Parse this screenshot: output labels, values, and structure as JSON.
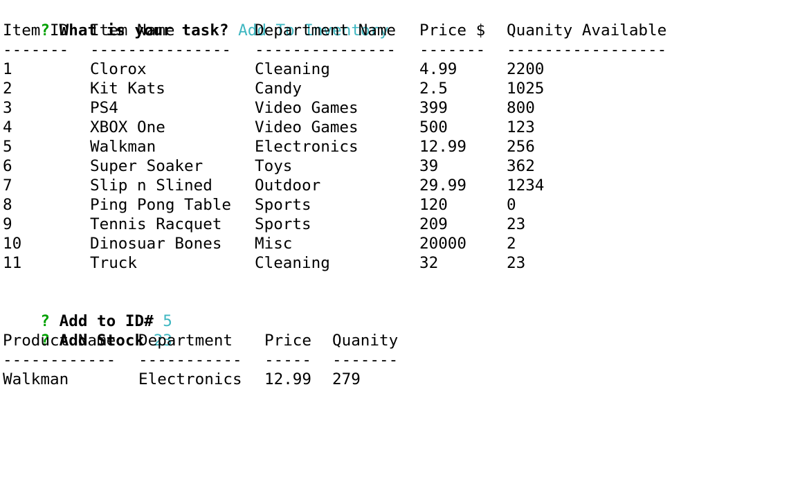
{
  "prompt1": {
    "marker": "?",
    "question": "What is your task?",
    "answer": "Add To Inventory"
  },
  "inventory_table": {
    "headers": [
      "Item ID",
      "Item Name",
      "Department Name",
      "Price $",
      "Quanity Available"
    ],
    "dividers": [
      "-------",
      "---------------",
      "---------------",
      "-------",
      "-----------------"
    ],
    "rows": [
      [
        "1",
        "Clorox",
        "Cleaning",
        "4.99",
        "2200"
      ],
      [
        "2",
        "Kit Kats",
        "Candy",
        "2.5",
        "1025"
      ],
      [
        "3",
        "PS4",
        "Video Games",
        "399",
        "800"
      ],
      [
        "4",
        "XBOX One",
        "Video Games",
        "500",
        "123"
      ],
      [
        "5",
        "Walkman",
        "Electronics",
        "12.99",
        "256"
      ],
      [
        "6",
        "Super Soaker",
        "Toys",
        "39",
        "362"
      ],
      [
        "7",
        "Slip n Slined",
        "Outdoor",
        "29.99",
        "1234"
      ],
      [
        "8",
        "Ping Pong Table",
        "Sports",
        "120",
        "0"
      ],
      [
        "9",
        "Tennis Racquet",
        "Sports",
        "209",
        "23"
      ],
      [
        "10",
        "Dinosuar Bones",
        "Misc",
        "20000",
        "2"
      ],
      [
        "11",
        "Truck",
        "Cleaning",
        "32",
        "23"
      ]
    ]
  },
  "prompt2": {
    "marker": "?",
    "question": "Add to ID#",
    "answer": "5"
  },
  "prompt3": {
    "marker": "?",
    "question": "Add Stock",
    "answer": "23"
  },
  "result_table": {
    "headers": [
      "Product Name",
      "Department",
      "Price",
      "Quanity"
    ],
    "dividers": [
      "------------",
      "-----------",
      "-----",
      "-------"
    ],
    "rows": [
      [
        "Walkman",
        "Electronics",
        "12.99",
        "279"
      ]
    ]
  },
  "colors": {
    "prompt_marker": "#00a000",
    "answer": "#3fb7c1",
    "text": "#000000",
    "background": "#ffffff"
  }
}
